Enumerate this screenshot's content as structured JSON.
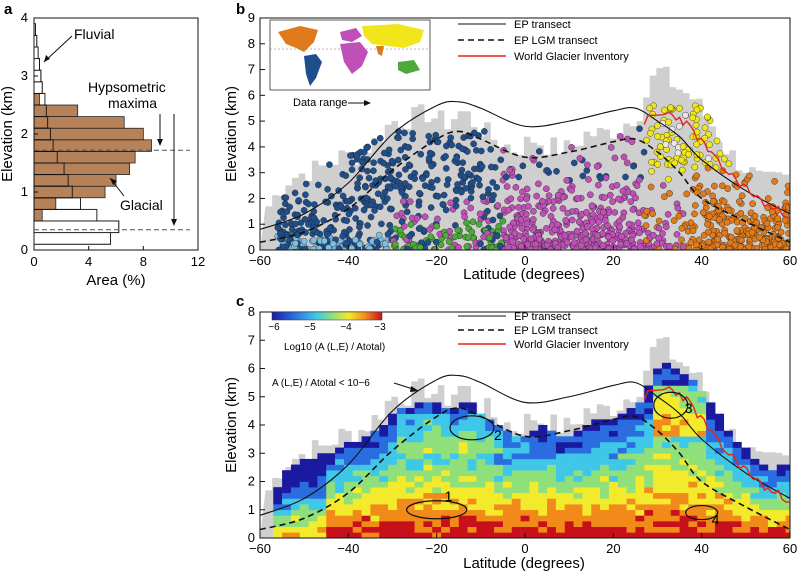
{
  "panel_a": {
    "letter": "a",
    "xlabel": "Area (%)",
    "ylabel": "Elevation (km)",
    "xticks": [
      "0",
      "4",
      "8",
      "12"
    ],
    "yticks": [
      "0",
      "1",
      "2",
      "3",
      "4"
    ],
    "annotations": {
      "fluvial": "Fluvial",
      "hypsometric_line1": "Hypsometric",
      "hypsometric_line2": "maxima",
      "glacial": "Glacial"
    }
  },
  "panel_b": {
    "letter": "b",
    "xlabel": "Latitude (degrees)",
    "ylabel": "Elevation (km)",
    "xticks": [
      "−60",
      "−40",
      "−20",
      "0",
      "20",
      "40",
      "60"
    ],
    "yticks": [
      "0",
      "1",
      "2",
      "3",
      "4",
      "5",
      "6",
      "7",
      "8",
      "9"
    ],
    "legend": {
      "ep": "EP transect",
      "lgm": "EP LGM transect",
      "wgi": "World Glacier Inventory"
    },
    "data_range_label": "Data range"
  },
  "panel_c": {
    "letter": "c",
    "xlabel": "Latitude (degrees)",
    "ylabel": "Elevation (km)",
    "xticks": [
      "−60",
      "−40",
      "−20",
      "0",
      "20",
      "40",
      "60"
    ],
    "yticks": [
      "0",
      "1",
      "2",
      "3",
      "4",
      "5",
      "6",
      "7",
      "8"
    ],
    "legend": {
      "ep": "EP transect",
      "lgm": "EP LGM transect",
      "wgi": "World Glacier Inventory"
    },
    "colorbar_ticks": [
      "−6",
      "−5",
      "−4",
      "−3"
    ],
    "colorbar_label": "Log10 (A (L,E) / Atotal)",
    "threshold_label": "A (L,E) / Atotal < 10−6",
    "circle_labels": [
      "1",
      "2",
      "3",
      "4"
    ]
  },
  "colors": {
    "glacial_bar": "#b5825a",
    "ep_line": "#111111",
    "wgi_line": "#e8231b",
    "data_range_fill": "#cfcfcf",
    "americas": "#1f4e8c",
    "africa_europe": "#c050b8",
    "asia": "#f0e61a",
    "india": "#e07a1a",
    "oceania": "#4caa3a"
  },
  "chart_data": [
    {
      "type": "bar",
      "title": "",
      "xlabel": "Area (%)",
      "ylabel": "Elevation (km)",
      "orientation": "horizontal",
      "xlim": [
        0,
        12
      ],
      "ylim": [
        0,
        4
      ],
      "elevation_km": [
        0.2,
        0.4,
        0.6,
        0.8,
        1.0,
        1.2,
        1.4,
        1.6,
        1.8,
        2.0,
        2.2,
        2.4,
        2.6,
        2.8,
        3.0,
        3.2,
        3.4,
        3.6,
        3.8
      ],
      "series": [
        {
          "name": "Fluvial",
          "values": [
            5.6,
            6.2,
            4.6,
            3.4,
            2.8,
            2.5,
            2.2,
            1.7,
            1.4,
            1.2,
            1.0,
            0.9,
            0.8,
            0.6,
            0.5,
            0.4,
            0.3,
            0.2,
            0.1
          ]
        },
        {
          "name": "Glacial",
          "values": [
            0.0,
            0.0,
            0.6,
            1.6,
            5.2,
            6.0,
            7.0,
            7.4,
            8.6,
            8.0,
            6.6,
            3.2,
            0.4,
            0.0,
            0.0,
            0.0,
            0.0,
            0.0,
            0.0
          ]
        }
      ],
      "hypsometric_maxima_km": [
        1.72,
        0.35
      ]
    },
    {
      "type": "scatter",
      "title": "",
      "xlabel": "Latitude (degrees)",
      "ylabel": "Elevation (km)",
      "xlim": [
        -60,
        60
      ],
      "ylim": [
        0,
        9
      ],
      "ep_transect": {
        "x": [
          -60,
          -50,
          -40,
          -30,
          -20,
          -15,
          -10,
          0,
          10,
          20,
          25,
          30,
          35,
          40,
          50,
          60
        ],
        "y": [
          0.8,
          1.4,
          2.6,
          4.5,
          5.6,
          5.75,
          5.5,
          4.8,
          5.0,
          5.4,
          5.5,
          5.0,
          4.4,
          3.5,
          2.3,
          1.4
        ]
      },
      "ep_lgm_transect": {
        "x": [
          -60,
          -50,
          -40,
          -30,
          -20,
          -15,
          -10,
          0,
          10,
          20,
          25,
          30,
          35,
          40,
          50,
          60
        ],
        "y": [
          0.3,
          0.7,
          1.6,
          3.1,
          4.3,
          4.6,
          4.3,
          3.6,
          3.8,
          4.2,
          4.3,
          3.8,
          3.0,
          2.0,
          1.1,
          0.3
        ]
      },
      "world_glacier_inventory": {
        "x": [
          27,
          30,
          33,
          36,
          40,
          44,
          48,
          52,
          56,
          60
        ],
        "y": [
          5.0,
          5.2,
          5.3,
          5.0,
          4.2,
          3.3,
          2.7,
          2.1,
          1.6,
          1.4
        ]
      },
      "data_range_max": {
        "x": [
          -58,
          -54,
          -50,
          -46,
          -42,
          -38,
          -34,
          -30,
          -26,
          -22,
          -18,
          -14,
          -10,
          -6,
          -2,
          2,
          6,
          10,
          14,
          18,
          22,
          26,
          30,
          34,
          38,
          42,
          46,
          50,
          54,
          58
        ],
        "y": [
          1.7,
          2.7,
          3.0,
          3.2,
          3.6,
          3.7,
          4.2,
          5.0,
          5.1,
          5.3,
          4.9,
          5.4,
          4.7,
          4.2,
          3.9,
          4.3,
          4.0,
          3.9,
          4.5,
          4.5,
          4.8,
          5.4,
          7.0,
          6.4,
          5.9,
          5.0,
          3.8,
          3.2,
          2.6,
          2.7
        ]
      }
    },
    {
      "type": "heatmap",
      "title": "",
      "xlabel": "Latitude (degrees)",
      "ylabel": "Elevation (km)",
      "xlim": [
        -60,
        60
      ],
      "ylim": [
        0,
        8
      ],
      "colorbar_range": [
        -6,
        -3
      ],
      "ep_transect": {
        "x": [
          -60,
          -50,
          -40,
          -30,
          -20,
          -15,
          -10,
          0,
          10,
          20,
          25,
          30,
          35,
          40,
          50,
          60
        ],
        "y": [
          0.8,
          1.4,
          2.6,
          4.5,
          5.6,
          5.75,
          5.5,
          4.8,
          5.0,
          5.4,
          5.5,
          5.0,
          4.4,
          3.5,
          2.3,
          1.4
        ]
      },
      "ep_lgm_transect": {
        "x": [
          -60,
          -50,
          -40,
          -30,
          -20,
          -15,
          -10,
          0,
          10,
          20,
          25,
          30,
          35,
          40,
          50,
          60
        ],
        "y": [
          0.3,
          0.7,
          1.6,
          3.1,
          4.3,
          4.6,
          4.3,
          3.6,
          3.8,
          4.2,
          4.3,
          3.8,
          3.0,
          2.0,
          1.1,
          0.3
        ]
      },
      "world_glacier_inventory": {
        "x": [
          27,
          30,
          33,
          36,
          40,
          44,
          48,
          52,
          56,
          60
        ],
        "y": [
          5.0,
          5.2,
          5.3,
          5.0,
          4.2,
          3.3,
          2.7,
          2.1,
          1.6,
          1.4
        ]
      },
      "highlighted_regions": [
        {
          "label": "1",
          "x": -20,
          "y": 1.0
        },
        {
          "label": "2",
          "x": -12,
          "y": 3.9
        },
        {
          "label": "3",
          "x": 33,
          "y": 4.7
        },
        {
          "label": "4",
          "x": 40,
          "y": 0.9
        }
      ]
    }
  ]
}
